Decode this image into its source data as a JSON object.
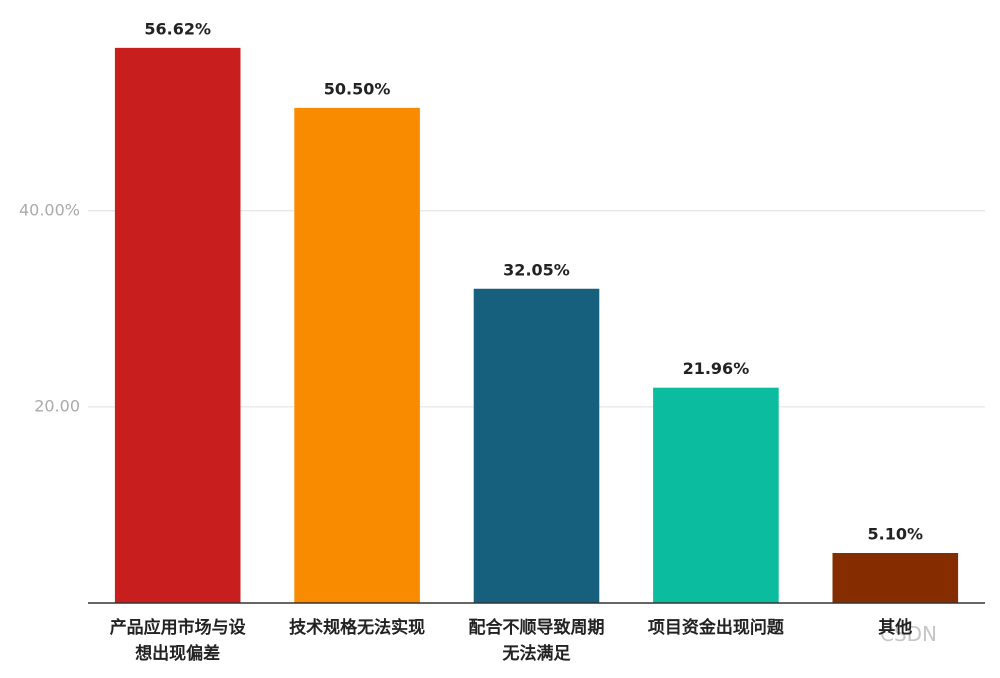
{
  "chart_data": {
    "type": "bar",
    "categories": [
      "产品应用市场与设想出现偏差",
      "技术规格无法实现",
      "配合不顺导致周期无法满足",
      "项目资金出现问题",
      "其他"
    ],
    "values": [
      56.62,
      50.5,
      32.05,
      21.96,
      5.1
    ],
    "value_labels": [
      "56.62%",
      "50.50%",
      "32.05%",
      "21.96%",
      "5.10%"
    ],
    "colors": [
      "#c81e1e",
      "#f98b00",
      "#17607d",
      "#0cbc9e",
      "#862d00"
    ],
    "ylim": [
      0,
      61.5
    ],
    "yticks": [
      {
        "value": 20,
        "label": "20.00"
      },
      {
        "value": 40,
        "label": "40.00%"
      }
    ],
    "grid": true,
    "watermark": "CSDN"
  }
}
